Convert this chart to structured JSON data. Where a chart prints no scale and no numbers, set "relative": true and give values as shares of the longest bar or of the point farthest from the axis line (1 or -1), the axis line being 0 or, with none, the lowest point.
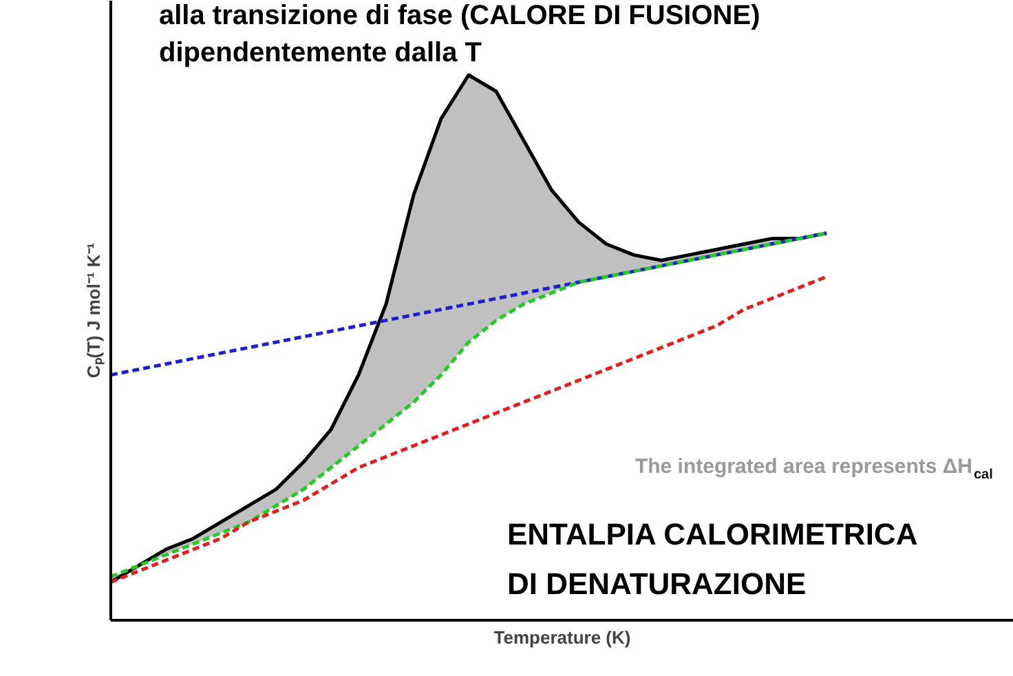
{
  "chart_data": {
    "type": "line",
    "relative": true,
    "title": "alla transizione di fase  (CALORE DI FUSIONE)\ndipendentemente dalla T",
    "xlabel": "Temperature (K)",
    "ylabel": "Cₚ(T) J mol⁻¹ K⁻¹",
    "categories": [
      null,
      null,
      null,
      null,
      null,
      null,
      null,
      null,
      null,
      null,
      null,
      null,
      null,
      null,
      null,
      null,
      null,
      null,
      null,
      null,
      null,
      null,
      null,
      null,
      null,
      null,
      null
    ],
    "series": [
      {
        "color": "#000000",
        "line_style": "solid",
        "values": [
          0.07,
          0.1,
          0.13,
          0.15,
          0.18,
          0.21,
          0.24,
          0.29,
          0.35,
          0.45,
          0.58,
          0.78,
          0.92,
          1.0,
          0.97,
          0.88,
          0.79,
          0.73,
          0.69,
          0.67,
          0.66,
          0.67,
          0.68,
          0.69,
          0.7,
          0.7,
          0.71
        ],
        "lower": [
          0.08,
          0.1,
          0.12,
          0.14,
          0.16,
          0.18,
          0.21,
          0.24,
          0.28,
          0.32,
          0.36,
          0.4,
          0.45,
          0.51,
          0.55,
          0.58,
          0.6,
          0.62,
          0.63,
          0.64,
          0.65,
          0.66,
          0.67,
          0.68,
          0.69,
          0.7,
          0.71
        ],
        "upper": [
          0.07,
          0.1,
          0.13,
          0.15,
          0.18,
          0.21,
          0.24,
          0.29,
          0.35,
          0.45,
          0.58,
          0.78,
          0.92,
          1.0,
          0.97,
          0.88,
          0.79,
          0.73,
          0.69,
          0.67,
          0.66,
          0.67,
          0.68,
          0.69,
          0.7,
          0.7,
          0.71
        ]
      },
      {
        "color": "#1f1fd0",
        "line_style": "dashed",
        "values": [
          0.45,
          0.46,
          0.47,
          0.48,
          0.49,
          0.5,
          0.51,
          0.52,
          0.53,
          0.54,
          0.55,
          0.56,
          0.57,
          0.58,
          0.59,
          0.6,
          0.61,
          0.62,
          0.63,
          0.64,
          0.65,
          0.66,
          0.67,
          0.68,
          0.69,
          0.7,
          0.71
        ]
      },
      {
        "color": "#22cc22",
        "line_style": "dashed",
        "values": [
          0.08,
          0.1,
          0.12,
          0.14,
          0.16,
          0.18,
          0.21,
          0.24,
          0.28,
          0.32,
          0.36,
          0.4,
          0.45,
          0.51,
          0.55,
          0.58,
          0.6,
          0.62,
          0.63,
          0.64,
          0.65,
          0.66,
          0.67,
          0.68,
          0.69,
          0.7,
          0.71
        ]
      },
      {
        "color": "#e02020",
        "line_style": "dashed",
        "values": [
          0.07,
          0.09,
          0.11,
          0.13,
          0.15,
          0.18,
          0.2,
          0.22,
          0.25,
          0.28,
          0.3,
          0.32,
          0.34,
          0.36,
          0.38,
          0.4,
          0.42,
          0.44,
          0.46,
          0.48,
          0.5,
          0.52,
          0.54,
          0.57,
          0.59,
          0.61,
          0.63
        ]
      }
    ],
    "annotations": [
      "The integrated area represents ΔH$_{cal}$",
      "ENTALPIA CALORIMETRICA\nDI DENATURAZIONE"
    ],
    "marker": "none"
  }
}
